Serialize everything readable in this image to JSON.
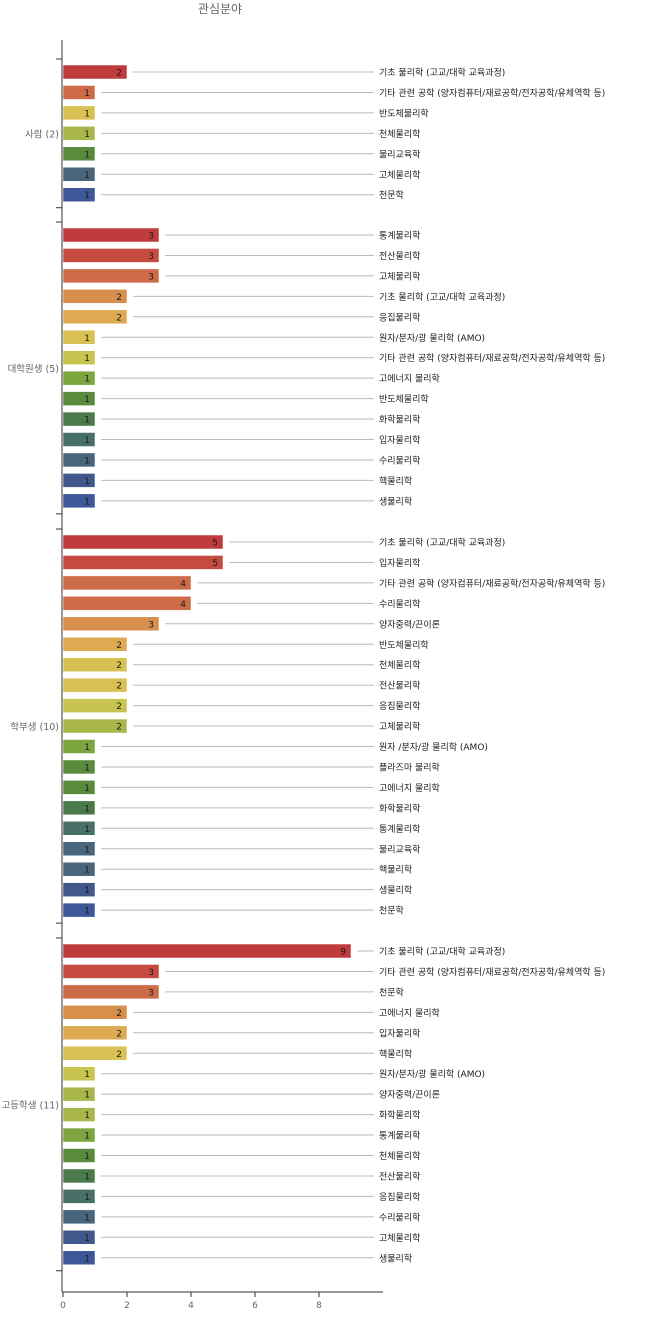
{
  "chart_data": {
    "type": "bar",
    "orientation": "horizontal",
    "title": "관심분야",
    "xlim": [
      0,
      10
    ],
    "x_ticks": [
      0,
      2,
      4,
      6,
      8
    ],
    "grid": false,
    "legend": "none",
    "groups": [
      {
        "label": "사람 (2)",
        "bars": [
          {
            "category": "기초 물리학 (고교/대학 교육과정)",
            "value": 2
          },
          {
            "category": "기타 관련 공학 (양자컴퓨터/재료공학/전자공학/유체역학 등)",
            "value": 1
          },
          {
            "category": "반도체물리학",
            "value": 1
          },
          {
            "category": "천체물리학",
            "value": 1
          },
          {
            "category": "물리교육학",
            "value": 1
          },
          {
            "category": "고체물리학",
            "value": 1
          },
          {
            "category": "천문학",
            "value": 1
          }
        ]
      },
      {
        "label": "대학원생 (5)",
        "bars": [
          {
            "category": "통계물리학",
            "value": 3
          },
          {
            "category": "전산물리학",
            "value": 3
          },
          {
            "category": "고체물리학",
            "value": 3
          },
          {
            "category": "기초 물리학 (고교/대학 교육과정)",
            "value": 2
          },
          {
            "category": "응집물리학",
            "value": 2
          },
          {
            "category": "원자/분자/광 물리학 (AMO)",
            "value": 1
          },
          {
            "category": "기타 관련 공학 (양자컴퓨터/재료공학/전자공학/유체역학 등)",
            "value": 1
          },
          {
            "category": "고에너지 물리학",
            "value": 1
          },
          {
            "category": "반도체물리학",
            "value": 1
          },
          {
            "category": "화학물리학",
            "value": 1
          },
          {
            "category": "입자물리학",
            "value": 1
          },
          {
            "category": "수리물리학",
            "value": 1
          },
          {
            "category": "핵물리학",
            "value": 1
          },
          {
            "category": "생물리학",
            "value": 1
          }
        ]
      },
      {
        "label": "학부생 (10)",
        "bars": [
          {
            "category": "기초 물리학 (고교/대학 교육과정)",
            "value": 5
          },
          {
            "category": "입자물리학",
            "value": 5
          },
          {
            "category": "기타 관련 공학 (양자컴퓨터/재료공학/전자공학/유체역학 등)",
            "value": 4
          },
          {
            "category": "수리물리학",
            "value": 4
          },
          {
            "category": "양자중력/끈이론",
            "value": 3
          },
          {
            "category": "반도체물리학",
            "value": 2
          },
          {
            "category": "천체물리학",
            "value": 2
          },
          {
            "category": "전산물리학",
            "value": 2
          },
          {
            "category": "응집물리학",
            "value": 2
          },
          {
            "category": "고체물리학",
            "value": 2
          },
          {
            "category": "원자 /분자/광 물리학 (AMO)",
            "value": 1
          },
          {
            "category": "플라즈마 물리학",
            "value": 1
          },
          {
            "category": "고에너지 물리학",
            "value": 1
          },
          {
            "category": "화학물리학",
            "value": 1
          },
          {
            "category": "통계물리학",
            "value": 1
          },
          {
            "category": "물리교육학",
            "value": 1
          },
          {
            "category": "핵물리학",
            "value": 1
          },
          {
            "category": "생물리학",
            "value": 1
          },
          {
            "category": "천문학",
            "value": 1
          }
        ]
      },
      {
        "label": "고등학생 (11)",
        "bars": [
          {
            "category": "기초 물리학 (고교/대학 교육과정)",
            "value": 9
          },
          {
            "category": "기타 관련 공학 (양자컴퓨터/재료공학/전자공학/유체역학 등)",
            "value": 3
          },
          {
            "category": "천문학",
            "value": 3
          },
          {
            "category": "고에너지 물리학",
            "value": 2
          },
          {
            "category": "입자물리학",
            "value": 2
          },
          {
            "category": "핵물리학",
            "value": 2
          },
          {
            "category": "원자/분자/광 물리학 (AMO)",
            "value": 1
          },
          {
            "category": "양자중력/끈이론",
            "value": 1
          },
          {
            "category": "화학물리학",
            "value": 1
          },
          {
            "category": "통계물리학",
            "value": 1
          },
          {
            "category": "천체물리학",
            "value": 1
          },
          {
            "category": "전산물리학",
            "value": 1
          },
          {
            "category": "응집물리학",
            "value": 1
          },
          {
            "category": "수리물리학",
            "value": 1
          },
          {
            "category": "고체물리학",
            "value": 1
          },
          {
            "category": "생물리학",
            "value": 1
          }
        ]
      }
    ]
  },
  "colors": {
    "palette": [
      "#c03b3b",
      "#c54a40",
      "#cd6a48",
      "#d6904c",
      "#ddaa52",
      "#d8c052",
      "#c8c450",
      "#a8b64a",
      "#7ca43f",
      "#5a8a3c",
      "#4a7a4a",
      "#487066",
      "#48657c",
      "#40598a",
      "#3e5798"
    ],
    "axis": "#333333",
    "leader_line": "#bbbbbb",
    "text": "#222222",
    "muted_text": "#666666"
  }
}
